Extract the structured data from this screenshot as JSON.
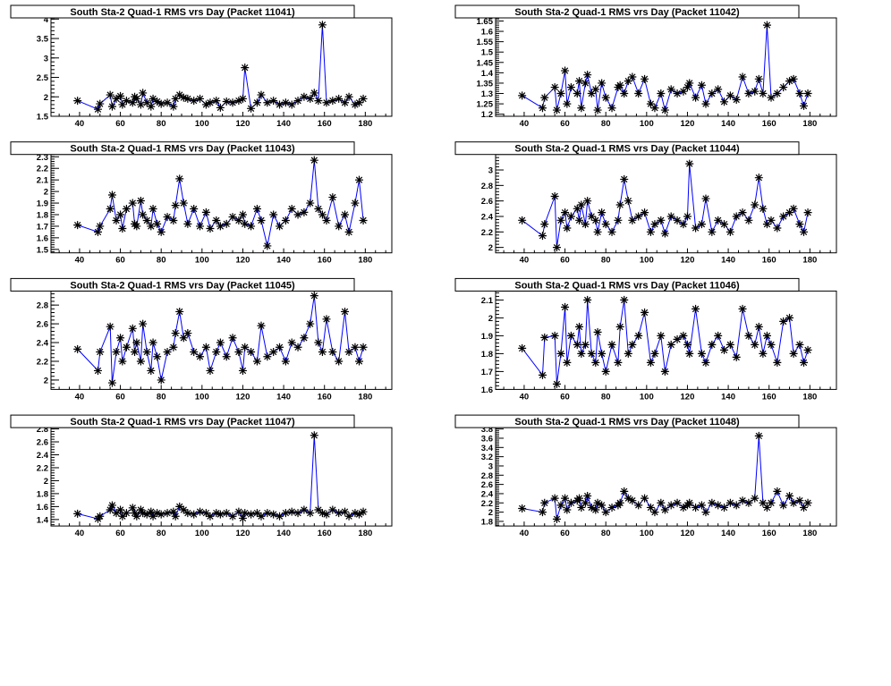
{
  "chart_data": [
    {
      "type": "line",
      "title": "South Sta-2 Quad-1 RMS vrs Day (Packet 11041)",
      "xlim": [
        26,
        193
      ],
      "ylim": [
        1.5,
        4.03
      ],
      "xticks": [
        40,
        60,
        80,
        100,
        120,
        140,
        160,
        180
      ],
      "yticks": [
        "1.5",
        "2",
        "2.5",
        "3",
        "3.5",
        "4"
      ],
      "values": [
        1.9,
        1.68,
        1.82,
        2.05,
        1.75,
        1.95,
        2.02,
        1.8,
        1.9,
        1.85,
        2.0,
        1.95,
        1.8,
        2.1,
        1.85,
        1.75,
        1.95,
        1.88,
        1.82,
        1.85,
        1.75,
        1.95,
        2.05,
        1.98,
        1.95,
        1.9,
        1.95,
        1.8,
        1.85,
        1.9,
        1.72,
        1.88,
        1.85,
        1.9,
        1.95,
        2.75,
        1.7,
        1.85,
        2.05,
        1.85,
        1.9,
        1.8,
        1.85,
        1.8,
        1.9,
        2.0,
        1.95,
        2.1,
        1.9,
        3.85,
        1.85,
        1.9,
        1.95,
        1.85,
        2.0,
        1.8,
        1.85,
        1.95
      ]
    },
    {
      "type": "line",
      "title": "South Sta-2 Quad-1 RMS vrs Day (Packet 11042)",
      "xlim": [
        26,
        193
      ],
      "ylim": [
        1.19,
        1.665
      ],
      "xticks": [
        40,
        60,
        80,
        100,
        120,
        140,
        160,
        180
      ],
      "yticks": [
        "1.2",
        "1.25",
        "1.3",
        "1.35",
        "1.4",
        "1.45",
        "1.5",
        "1.55",
        "1.6",
        "1.65"
      ],
      "values": [
        1.29,
        1.23,
        1.28,
        1.33,
        1.22,
        1.3,
        1.41,
        1.25,
        1.33,
        1.3,
        1.36,
        1.23,
        1.35,
        1.39,
        1.3,
        1.32,
        1.22,
        1.35,
        1.28,
        1.23,
        1.33,
        1.34,
        1.3,
        1.36,
        1.38,
        1.3,
        1.37,
        1.25,
        1.23,
        1.3,
        1.22,
        1.32,
        1.3,
        1.31,
        1.33,
        1.35,
        1.28,
        1.34,
        1.25,
        1.3,
        1.32,
        1.26,
        1.29,
        1.27,
        1.38,
        1.3,
        1.31,
        1.37,
        1.3,
        1.63,
        1.28,
        1.3,
        1.33,
        1.36,
        1.37,
        1.3,
        1.24,
        1.3
      ]
    },
    {
      "type": "line",
      "title": "South Sta-2 Quad-1 RMS vrs Day (Packet 11043)",
      "xlim": [
        26,
        193
      ],
      "ylim": [
        1.47,
        2.32
      ],
      "xticks": [
        40,
        60,
        80,
        100,
        120,
        140,
        160,
        180
      ],
      "yticks": [
        "1.5",
        "1.6",
        "1.7",
        "1.8",
        "1.9",
        "2",
        "2.1",
        "2.2",
        "2.3"
      ],
      "values": [
        1.71,
        1.65,
        1.7,
        1.85,
        1.97,
        1.75,
        1.8,
        1.68,
        1.85,
        1.9,
        1.72,
        1.7,
        1.92,
        1.8,
        1.75,
        1.7,
        1.85,
        1.72,
        1.65,
        1.78,
        1.75,
        1.88,
        2.11,
        1.9,
        1.72,
        1.85,
        1.7,
        1.82,
        1.68,
        1.75,
        1.7,
        1.72,
        1.78,
        1.75,
        1.8,
        1.72,
        1.7,
        1.85,
        1.75,
        1.53,
        1.8,
        1.7,
        1.75,
        1.85,
        1.8,
        1.82,
        1.9,
        2.27,
        1.85,
        1.8,
        1.75,
        1.95,
        1.7,
        1.8,
        1.65,
        1.9,
        2.1,
        1.75
      ]
    },
    {
      "type": "line",
      "title": "South Sta-2 Quad-1 RMS vrs Day (Packet 11044)",
      "xlim": [
        26,
        193
      ],
      "ylim": [
        1.93,
        3.2
      ],
      "xticks": [
        40,
        60,
        80,
        100,
        120,
        140,
        160,
        180
      ],
      "yticks": [
        "2",
        "2.2",
        "2.4",
        "2.6",
        "2.8",
        "3"
      ],
      "values": [
        2.35,
        2.15,
        2.3,
        2.66,
        2.0,
        2.35,
        2.45,
        2.25,
        2.4,
        2.5,
        2.35,
        2.55,
        2.3,
        2.6,
        2.4,
        2.35,
        2.2,
        2.45,
        2.3,
        2.2,
        2.35,
        2.55,
        2.88,
        2.6,
        2.35,
        2.4,
        2.45,
        2.2,
        2.3,
        2.35,
        2.18,
        2.4,
        2.35,
        2.3,
        2.4,
        3.08,
        2.25,
        2.3,
        2.63,
        2.2,
        2.35,
        2.3,
        2.2,
        2.4,
        2.45,
        2.35,
        2.55,
        2.9,
        2.5,
        2.3,
        2.35,
        2.25,
        2.4,
        2.45,
        2.5,
        2.3,
        2.2,
        2.45
      ]
    },
    {
      "type": "line",
      "title": "South Sta-2 Quad-1 RMS vrs Day (Packet 11045)",
      "xlim": [
        26,
        193
      ],
      "ylim": [
        1.9,
        2.95
      ],
      "xticks": [
        40,
        60,
        80,
        100,
        120,
        140,
        160,
        180
      ],
      "yticks": [
        "2",
        "2.2",
        "2.4",
        "2.6",
        "2.8"
      ],
      "values": [
        2.33,
        2.1,
        2.3,
        2.57,
        1.97,
        2.3,
        2.45,
        2.2,
        2.35,
        2.55,
        2.3,
        2.4,
        2.2,
        2.6,
        2.3,
        2.1,
        2.4,
        2.25,
        2.0,
        2.3,
        2.35,
        2.5,
        2.73,
        2.45,
        2.5,
        2.3,
        2.25,
        2.35,
        2.1,
        2.3,
        2.4,
        2.25,
        2.45,
        2.3,
        2.1,
        2.35,
        2.3,
        2.2,
        2.58,
        2.25,
        2.3,
        2.35,
        2.2,
        2.4,
        2.35,
        2.45,
        2.6,
        2.9,
        2.4,
        2.3,
        2.65,
        2.3,
        2.2,
        2.73,
        2.3,
        2.35,
        2.2,
        2.35
      ]
    },
    {
      "type": "line",
      "title": "South Sta-2 Quad-1 RMS vrs Day (Packet 11046)",
      "xlim": [
        26,
        193
      ],
      "ylim": [
        1.6,
        2.15
      ],
      "xticks": [
        40,
        60,
        80,
        100,
        120,
        140,
        160,
        180
      ],
      "yticks": [
        "1.6",
        "1.7",
        "1.8",
        "1.9",
        "2",
        "2.1"
      ],
      "values": [
        1.83,
        1.68,
        1.89,
        1.9,
        1.63,
        1.8,
        2.06,
        1.75,
        1.9,
        1.85,
        1.95,
        1.8,
        1.85,
        2.1,
        1.8,
        1.75,
        1.92,
        1.8,
        1.7,
        1.85,
        1.75,
        1.95,
        2.1,
        1.8,
        1.85,
        1.9,
        2.03,
        1.75,
        1.8,
        1.9,
        1.7,
        1.85,
        1.88,
        1.9,
        1.85,
        1.8,
        2.05,
        1.8,
        1.75,
        1.85,
        1.9,
        1.82,
        1.85,
        1.78,
        2.05,
        1.9,
        1.85,
        1.95,
        1.8,
        1.9,
        1.85,
        1.75,
        1.98,
        2.0,
        1.8,
        1.85,
        1.75,
        1.82
      ]
    },
    {
      "type": "line",
      "title": "South Sta-2 Quad-1 RMS vrs Day (Packet 11047)",
      "xlim": [
        26,
        193
      ],
      "ylim": [
        1.3,
        2.82
      ],
      "xticks": [
        40,
        60,
        80,
        100,
        120,
        140,
        160,
        180
      ],
      "yticks": [
        "1.4",
        "1.6",
        "1.8",
        "2",
        "2.2",
        "2.4",
        "2.6",
        "2.8"
      ],
      "values": [
        1.49,
        1.41,
        1.45,
        1.55,
        1.62,
        1.5,
        1.55,
        1.45,
        1.5,
        1.58,
        1.5,
        1.45,
        1.55,
        1.5,
        1.48,
        1.52,
        1.45,
        1.5,
        1.48,
        1.5,
        1.52,
        1.45,
        1.6,
        1.55,
        1.5,
        1.48,
        1.52,
        1.5,
        1.45,
        1.5,
        1.48,
        1.5,
        1.45,
        1.52,
        1.42,
        1.5,
        1.48,
        1.5,
        1.45,
        1.5,
        1.48,
        1.45,
        1.5,
        1.52,
        1.5,
        1.55,
        1.5,
        2.7,
        1.55,
        1.5,
        1.48,
        1.55,
        1.5,
        1.52,
        1.45,
        1.5,
        1.48,
        1.52
      ]
    },
    {
      "type": "line",
      "title": "South Sta-2 Quad-1 RMS vrs Day (Packet 11048)",
      "xlim": [
        26,
        193
      ],
      "ylim": [
        1.7,
        3.83
      ],
      "xticks": [
        40,
        60,
        80,
        100,
        120,
        140,
        160,
        180
      ],
      "yticks": [
        "1.8",
        "2",
        "2.2",
        "2.4",
        "2.6",
        "2.8",
        "3",
        "3.2",
        "3.4",
        "3.6",
        "3.8"
      ],
      "values": [
        2.08,
        2.0,
        2.2,
        2.3,
        1.85,
        2.15,
        2.3,
        2.05,
        2.2,
        2.25,
        2.3,
        2.1,
        2.2,
        2.35,
        2.1,
        2.05,
        2.2,
        2.15,
        2.0,
        2.1,
        2.15,
        2.2,
        2.45,
        2.3,
        2.25,
        2.15,
        2.3,
        2.1,
        2.0,
        2.2,
        2.05,
        2.15,
        2.2,
        2.1,
        2.15,
        2.2,
        2.1,
        2.15,
        2.0,
        2.2,
        2.15,
        2.1,
        2.2,
        2.15,
        2.25,
        2.2,
        2.3,
        3.65,
        2.2,
        2.1,
        2.2,
        2.45,
        2.15,
        2.35,
        2.2,
        2.25,
        2.1,
        2.2
      ]
    }
  ],
  "x_days": [
    39,
    49,
    50,
    55,
    56,
    58,
    60,
    61,
    63,
    66,
    67,
    68,
    70,
    71,
    73,
    75,
    76,
    78,
    80,
    83,
    86,
    87,
    89,
    91,
    93,
    96,
    99,
    102,
    104,
    107,
    109,
    112,
    115,
    118,
    120,
    121,
    124,
    127,
    129,
    132,
    135,
    138,
    141,
    144,
    147,
    150,
    153,
    155,
    157,
    159,
    161,
    164,
    167,
    170,
    172,
    175,
    177,
    179
  ],
  "colors": {
    "line": "#0000ff",
    "marker": "#000000",
    "frame": "#000000"
  }
}
